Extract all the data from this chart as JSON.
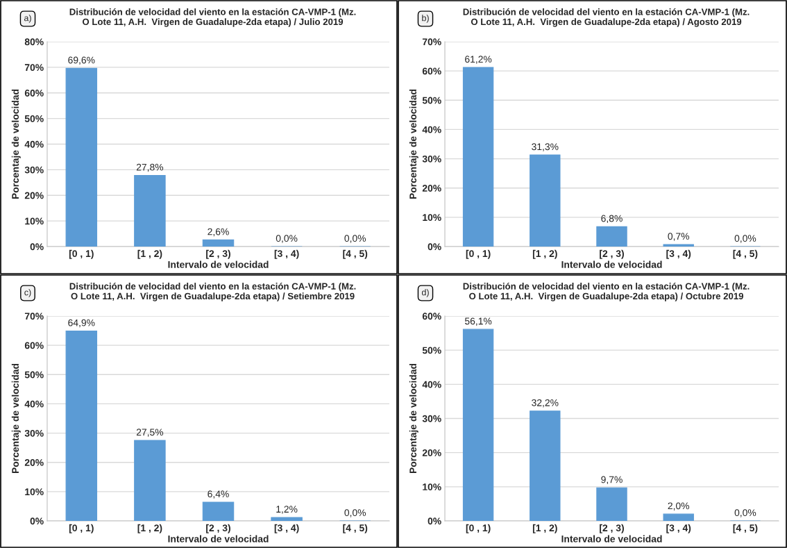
{
  "chart_data": [
    {
      "type": "bar",
      "title": "Distribución de velocidad del viento en la estación CA-VMP-1 (Mz.\nO Lote 11, A.H.  Virgen de Guadalupe-2da etapa) / Julio 2019",
      "xlabel": "Intervalo de velocidad",
      "ylabel": "Porcentaje de velocidad",
      "annotations": [
        "a)"
      ],
      "categories": [
        "[0 , 1)",
        "[1 , 2)",
        "[2 , 3)",
        "[3 , 4)",
        "[4 , 5)"
      ],
      "values": [
        69.6,
        27.8,
        2.6,
        0.0,
        0.0
      ],
      "value_labels": [
        "69,6%",
        "27,8%",
        "2,6%",
        "0,0%",
        "0,0%"
      ],
      "color": "#5b9bd5",
      "ylim": [
        0,
        80
      ],
      "yticks": [
        {
          "value": 0,
          "label": "0%"
        },
        {
          "value": 10,
          "label": "10%"
        },
        {
          "value": 20,
          "label": "20%"
        },
        {
          "value": 30,
          "label": "30%"
        },
        {
          "value": 40,
          "label": "40%"
        },
        {
          "value": 50,
          "label": "50%"
        },
        {
          "value": 60,
          "label": "60%"
        },
        {
          "value": 70,
          "label": "70%"
        },
        {
          "value": 80,
          "label": "80%"
        }
      ],
      "grid": "y"
    },
    {
      "type": "bar",
      "title": "Distribución de velocidad del viento en la estación CA-VMP-1 (Mz.\nO Lote 11, A.H.  Virgen de Guadalupe-2da etapa) / Agosto 2019",
      "xlabel": "Intervalo de velocidad",
      "ylabel": "Porcentaje de velocidad",
      "annotations": [
        "b)"
      ],
      "categories": [
        "[0 , 1)",
        "[1 , 2)",
        "[2 , 3)",
        "[3 , 4)",
        "[4 , 5)"
      ],
      "values": [
        61.2,
        31.3,
        6.8,
        0.7,
        0.0
      ],
      "value_labels": [
        "61,2%",
        "31,3%",
        "6,8%",
        "0,7%",
        "0,0%"
      ],
      "color": "#5b9bd5",
      "ylim": [
        0,
        70
      ],
      "yticks": [
        {
          "value": 0,
          "label": "0%"
        },
        {
          "value": 10,
          "label": "10%"
        },
        {
          "value": 20,
          "label": "20%"
        },
        {
          "value": 30,
          "label": "30%"
        },
        {
          "value": 40,
          "label": "40%"
        },
        {
          "value": 50,
          "label": "50%"
        },
        {
          "value": 60,
          "label": "60%"
        },
        {
          "value": 70,
          "label": "70%"
        }
      ],
      "grid": "y"
    },
    {
      "type": "bar",
      "title": "Distribución de velocidad del viento en la estación CA-VMP-1 (Mz.\nO Lote 11, A.H.  Virgen de Guadalupe-2da etapa) / Setiembre 2019",
      "xlabel": "Intervalo de velocidad",
      "ylabel": "Porcentaje de velocidad",
      "annotations": [
        "c)"
      ],
      "categories": [
        "[0 , 1)",
        "[1 , 2)",
        "[2 , 3)",
        "[3 , 4)",
        "[4 , 5)"
      ],
      "values": [
        64.9,
        27.5,
        6.4,
        1.2,
        0.0
      ],
      "value_labels": [
        "64,9%",
        "27,5%",
        "6,4%",
        "1,2%",
        "0,0%"
      ],
      "color": "#5b9bd5",
      "ylim": [
        0,
        70
      ],
      "yticks": [
        {
          "value": 0,
          "label": "0%"
        },
        {
          "value": 10,
          "label": "10%"
        },
        {
          "value": 20,
          "label": "20%"
        },
        {
          "value": 30,
          "label": "30%"
        },
        {
          "value": 40,
          "label": "40%"
        },
        {
          "value": 50,
          "label": "50%"
        },
        {
          "value": 60,
          "label": "60%"
        },
        {
          "value": 70,
          "label": "70%"
        }
      ],
      "grid": "y"
    },
    {
      "type": "bar",
      "title": "Distribución de velocidad del viento en la estación CA-VMP-1 (Mz.\nO Lote 11, A.H.  Virgen de Guadalupe-2da etapa) / Octubre 2019",
      "xlabel": "Intervalo de velocidad",
      "ylabel": "Porcentaje de velocidad",
      "annotations": [
        "d)"
      ],
      "categories": [
        "[0 , 1)",
        "[1 , 2)",
        "[2 , 3)",
        "[3 , 4)",
        "[4 , 5)"
      ],
      "values": [
        56.1,
        32.2,
        9.7,
        2.0,
        0.0
      ],
      "value_labels": [
        "56,1%",
        "32,2%",
        "9,7%",
        "2,0%",
        "0,0%"
      ],
      "color": "#5b9bd5",
      "ylim": [
        0,
        60
      ],
      "yticks": [
        {
          "value": 0,
          "label": "0%"
        },
        {
          "value": 10,
          "label": "10%"
        },
        {
          "value": 20,
          "label": "20%"
        },
        {
          "value": 30,
          "label": "30%"
        },
        {
          "value": 40,
          "label": "40%"
        },
        {
          "value": 50,
          "label": "50%"
        },
        {
          "value": 60,
          "label": "60%"
        }
      ],
      "grid": "y"
    }
  ]
}
